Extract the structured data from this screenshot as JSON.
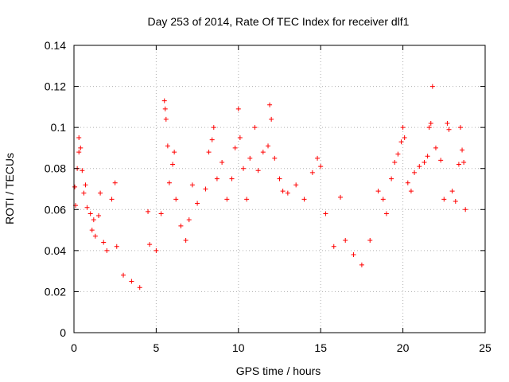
{
  "chart_data": {
    "type": "scatter",
    "title": "Day 253 of 2014, Rate Of TEC Index for receiver dlf1",
    "xlabel": "GPS time / hours",
    "ylabel": "ROTI / TECUs",
    "xlim": [
      0,
      25
    ],
    "ylim": [
      0,
      0.14
    ],
    "x_ticks": [
      "0",
      "5",
      "10",
      "15",
      "20",
      "25"
    ],
    "y_ticks": [
      "0",
      "0.02",
      "0.04",
      "0.06",
      "0.08",
      "0.1",
      "0.12",
      "0.14"
    ],
    "grid": true,
    "marker": "plus",
    "color": "#ff0000",
    "series": [
      {
        "values_note_free": true,
        "points": [
          [
            0.05,
            0.071
          ],
          [
            0.1,
            0.062
          ],
          [
            0.2,
            0.08
          ],
          [
            0.3,
            0.088
          ],
          [
            0.3,
            0.095
          ],
          [
            0.4,
            0.09
          ],
          [
            0.5,
            0.079
          ],
          [
            0.6,
            0.068
          ],
          [
            0.7,
            0.072
          ],
          [
            0.8,
            0.061
          ],
          [
            1.0,
            0.058
          ],
          [
            1.1,
            0.05
          ],
          [
            1.2,
            0.055
          ],
          [
            1.3,
            0.047
          ],
          [
            1.5,
            0.057
          ],
          [
            1.6,
            0.068
          ],
          [
            1.8,
            0.044
          ],
          [
            2.0,
            0.04
          ],
          [
            2.3,
            0.065
          ],
          [
            2.5,
            0.073
          ],
          [
            2.6,
            0.042
          ],
          [
            3.0,
            0.028
          ],
          [
            3.5,
            0.025
          ],
          [
            4.0,
            0.022
          ],
          [
            4.5,
            0.059
          ],
          [
            4.6,
            0.043
          ],
          [
            5.0,
            0.04
          ],
          [
            5.3,
            0.058
          ],
          [
            5.5,
            0.113
          ],
          [
            5.55,
            0.109
          ],
          [
            5.6,
            0.104
          ],
          [
            5.7,
            0.091
          ],
          [
            5.8,
            0.073
          ],
          [
            6.0,
            0.082
          ],
          [
            6.1,
            0.088
          ],
          [
            6.2,
            0.065
          ],
          [
            6.5,
            0.052
          ],
          [
            6.8,
            0.045
          ],
          [
            7.0,
            0.055
          ],
          [
            7.2,
            0.072
          ],
          [
            7.5,
            0.063
          ],
          [
            8.0,
            0.07
          ],
          [
            8.2,
            0.088
          ],
          [
            8.4,
            0.094
          ],
          [
            8.5,
            0.1
          ],
          [
            8.7,
            0.075
          ],
          [
            9.0,
            0.083
          ],
          [
            9.3,
            0.065
          ],
          [
            9.6,
            0.075
          ],
          [
            9.8,
            0.09
          ],
          [
            10.0,
            0.109
          ],
          [
            10.1,
            0.095
          ],
          [
            10.3,
            0.08
          ],
          [
            10.5,
            0.065
          ],
          [
            10.7,
            0.085
          ],
          [
            11.0,
            0.1
          ],
          [
            11.2,
            0.079
          ],
          [
            11.5,
            0.088
          ],
          [
            11.8,
            0.091
          ],
          [
            11.9,
            0.111
          ],
          [
            12.0,
            0.104
          ],
          [
            12.2,
            0.085
          ],
          [
            12.5,
            0.075
          ],
          [
            12.7,
            0.069
          ],
          [
            13.0,
            0.068
          ],
          [
            13.5,
            0.072
          ],
          [
            14.0,
            0.065
          ],
          [
            14.5,
            0.078
          ],
          [
            14.8,
            0.085
          ],
          [
            15.0,
            0.081
          ],
          [
            15.3,
            0.058
          ],
          [
            15.8,
            0.042
          ],
          [
            16.2,
            0.066
          ],
          [
            16.5,
            0.045
          ],
          [
            17.0,
            0.038
          ],
          [
            17.5,
            0.033
          ],
          [
            18.0,
            0.045
          ],
          [
            18.5,
            0.069
          ],
          [
            18.8,
            0.065
          ],
          [
            19.0,
            0.058
          ],
          [
            19.3,
            0.075
          ],
          [
            19.5,
            0.083
          ],
          [
            19.7,
            0.087
          ],
          [
            19.9,
            0.093
          ],
          [
            20.0,
            0.1
          ],
          [
            20.1,
            0.095
          ],
          [
            20.3,
            0.073
          ],
          [
            20.5,
            0.069
          ],
          [
            20.7,
            0.078
          ],
          [
            21.0,
            0.081
          ],
          [
            21.3,
            0.083
          ],
          [
            21.5,
            0.086
          ],
          [
            21.6,
            0.1
          ],
          [
            21.7,
            0.102
          ],
          [
            21.8,
            0.12
          ],
          [
            22.0,
            0.09
          ],
          [
            22.3,
            0.084
          ],
          [
            22.5,
            0.065
          ],
          [
            22.7,
            0.102
          ],
          [
            22.8,
            0.099
          ],
          [
            23.0,
            0.069
          ],
          [
            23.2,
            0.064
          ],
          [
            23.4,
            0.082
          ],
          [
            23.5,
            0.1
          ],
          [
            23.6,
            0.089
          ],
          [
            23.7,
            0.083
          ],
          [
            23.8,
            0.06
          ]
        ]
      }
    ]
  }
}
